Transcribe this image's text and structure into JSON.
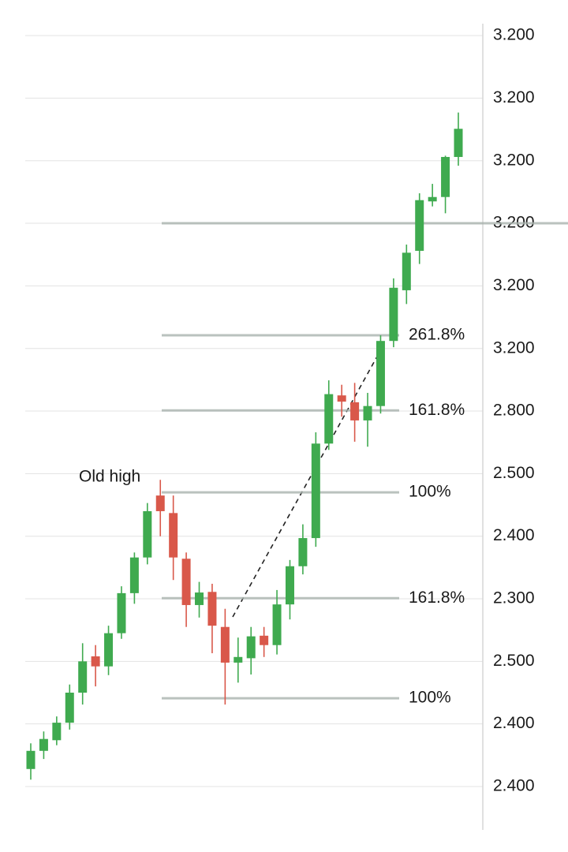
{
  "chart_data": {
    "type": "candlestick",
    "annotation": "Old high",
    "up_color": "#3faa4f",
    "down_color": "#d9584a",
    "grid": true,
    "ylim": [
      -0.6,
      12.2
    ],
    "yticks": [
      {
        "value": 0,
        "label": "2.400"
      },
      {
        "value": 1,
        "label": "2.400"
      },
      {
        "value": 2,
        "label": "2.500"
      },
      {
        "value": 3,
        "label": "2.300"
      },
      {
        "value": 4,
        "label": "2.400"
      },
      {
        "value": 5,
        "label": "2.500"
      },
      {
        "value": 6,
        "label": "2.800"
      },
      {
        "value": 7,
        "label": "3.200"
      },
      {
        "value": 8,
        "label": "3.200"
      },
      {
        "value": 9,
        "label": "3.200"
      },
      {
        "value": 10,
        "label": "3.200"
      },
      {
        "value": 11,
        "label": "3.200"
      },
      {
        "value": 12,
        "label": "3.200"
      }
    ],
    "levels": [
      {
        "value": 9.0
      },
      {
        "value": 7.21,
        "label": "261.8%"
      },
      {
        "value": 6.01,
        "label": "161.8%"
      },
      {
        "value": 4.7,
        "label": "100%"
      },
      {
        "value": 3.01,
        "label": "161.8%"
      },
      {
        "value": 1.41,
        "label": "100%"
      }
    ],
    "candles": [
      {
        "open": 0.28,
        "high": 0.69,
        "low": 0.11,
        "close": 0.57
      },
      {
        "open": 0.57,
        "high": 0.88,
        "low": 0.44,
        "close": 0.76
      },
      {
        "open": 0.74,
        "high": 1.12,
        "low": 0.66,
        "close": 1.02
      },
      {
        "open": 1.02,
        "high": 1.63,
        "low": 0.91,
        "close": 1.5
      },
      {
        "open": 1.5,
        "high": 2.29,
        "low": 1.31,
        "close": 2.0
      },
      {
        "open": 2.08,
        "high": 2.26,
        "low": 1.6,
        "close": 1.92
      },
      {
        "open": 1.92,
        "high": 2.57,
        "low": 1.78,
        "close": 2.45
      },
      {
        "open": 2.45,
        "high": 3.2,
        "low": 2.36,
        "close": 3.09
      },
      {
        "open": 3.09,
        "high": 3.74,
        "low": 2.92,
        "close": 3.66
      },
      {
        "open": 3.66,
        "high": 4.53,
        "low": 3.55,
        "close": 4.4
      },
      {
        "open": 4.65,
        "high": 4.9,
        "low": 4.0,
        "close": 4.4
      },
      {
        "open": 4.37,
        "high": 4.65,
        "low": 3.3,
        "close": 3.66
      },
      {
        "open": 3.64,
        "high": 3.74,
        "low": 2.55,
        "close": 2.9
      },
      {
        "open": 2.9,
        "high": 3.27,
        "low": 2.7,
        "close": 3.1
      },
      {
        "open": 3.11,
        "high": 3.24,
        "low": 2.13,
        "close": 2.57
      },
      {
        "open": 2.55,
        "high": 2.84,
        "low": 1.31,
        "close": 1.98
      },
      {
        "open": 1.98,
        "high": 2.38,
        "low": 1.66,
        "close": 2.07
      },
      {
        "open": 2.05,
        "high": 2.55,
        "low": 1.79,
        "close": 2.4
      },
      {
        "open": 2.41,
        "high": 2.55,
        "low": 2.07,
        "close": 2.26
      },
      {
        "open": 2.26,
        "high": 3.14,
        "low": 2.11,
        "close": 2.91
      },
      {
        "open": 2.91,
        "high": 3.62,
        "low": 2.67,
        "close": 3.52
      },
      {
        "open": 3.52,
        "high": 4.19,
        "low": 3.39,
        "close": 3.97
      },
      {
        "open": 3.97,
        "high": 5.66,
        "low": 3.83,
        "close": 5.48
      },
      {
        "open": 5.48,
        "high": 6.49,
        "low": 5.38,
        "close": 6.27
      },
      {
        "open": 6.25,
        "high": 6.42,
        "low": 5.91,
        "close": 6.15
      },
      {
        "open": 6.14,
        "high": 6.45,
        "low": 5.51,
        "close": 5.85
      },
      {
        "open": 5.85,
        "high": 6.29,
        "low": 5.43,
        "close": 6.08
      },
      {
        "open": 6.08,
        "high": 7.21,
        "low": 5.96,
        "close": 7.12
      },
      {
        "open": 7.12,
        "high": 8.12,
        "low": 7.02,
        "close": 7.97
      },
      {
        "open": 7.93,
        "high": 8.66,
        "low": 7.71,
        "close": 8.53
      },
      {
        "open": 8.56,
        "high": 9.48,
        "low": 8.35,
        "close": 9.37
      },
      {
        "open": 9.35,
        "high": 9.63,
        "low": 9.27,
        "close": 9.42
      },
      {
        "open": 9.42,
        "high": 10.08,
        "low": 9.16,
        "close": 10.06
      },
      {
        "open": 10.06,
        "high": 10.77,
        "low": 9.92,
        "close": 10.51
      }
    ]
  }
}
